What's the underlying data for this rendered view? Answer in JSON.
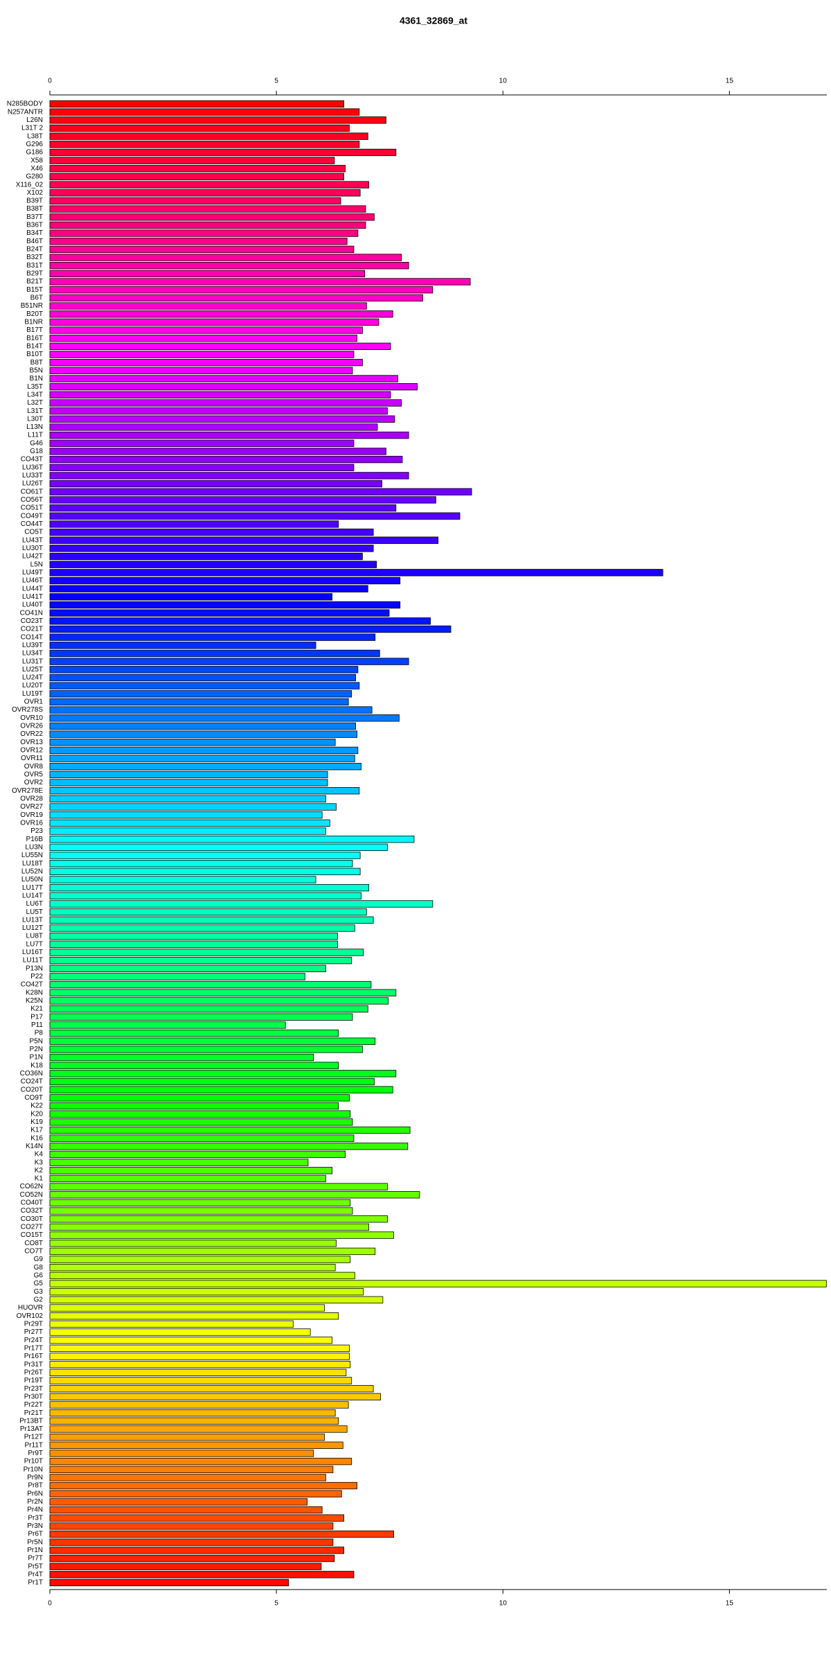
{
  "chart_data": {
    "type": "hbar",
    "title": "4361_32869_at",
    "palette": "rainbow",
    "bar_outline": "#000000",
    "xlim": [
      0,
      17.15
    ],
    "xticks": [
      0,
      5,
      10,
      15
    ],
    "categories": [
      "N285BODY",
      "N257ANTR",
      "L26N",
      "L31T 2",
      "L38T",
      "G296",
      "G186",
      "X58",
      "X46",
      "G280",
      "X116_02",
      "X102",
      "B39T",
      "B38T",
      "B37T",
      "B36T",
      "B34T",
      "B46T",
      "B24T",
      "B32T",
      "B31T",
      "B29T",
      "B21T",
      "B15T",
      "B6T",
      "B51NR",
      "B20T",
      "B1NR",
      "B17T",
      "B16T",
      "B14T",
      "B10T",
      "B8T",
      "B5N",
      "B1N",
      "L35T",
      "L34T",
      "L32T",
      "L31T",
      "L30T",
      "L13N",
      "L11T",
      "G46",
      "G18",
      "CO43T",
      "LU36T",
      "LU33T",
      "LU26T",
      "CO61T",
      "CO56T",
      "CO51T",
      "CO49T",
      "CO44T",
      "CO5T",
      "LU43T",
      "LU30T",
      "LU42T",
      "L5N",
      "LU49T",
      "LU46T",
      "LU44T",
      "LU41T",
      "LU40T",
      "CO41N",
      "CO23T",
      "CO21T",
      "CO14T",
      "LU39T",
      "LU34T",
      "LU31T",
      "LU25T",
      "LU24T",
      "LU20T",
      "LU19T",
      "OVR1",
      "OVR278S",
      "OVR10",
      "OVR26",
      "OVR22",
      "OVR13",
      "OVR12",
      "OVR11",
      "OVR8",
      "OVR5",
      "OVR2",
      "OVR278E",
      "OVR28",
      "OVR27",
      "OVR19",
      "OVR16",
      "P23",
      "P16B",
      "LU3N",
      "LU55N",
      "LU18T",
      "LU52N",
      "LU50N",
      "LU17T",
      "LU14T",
      "LU6T",
      "LU5T",
      "LU13T",
      "LU12T",
      "LU8T",
      "LU7T",
      "LU16T",
      "LU11T",
      "P13N",
      "P22",
      "CO42T",
      "K28N",
      "K25N",
      "K21",
      "P17",
      "P11",
      "P8",
      "P5N",
      "P2N",
      "P1N",
      "K18",
      "CO36N",
      "CO24T",
      "CO20T",
      "CO9T",
      "K22",
      "K20",
      "K19",
      "K17",
      "K16",
      "K14N",
      "K4",
      "K3",
      "K2",
      "K1",
      "CO62N",
      "CO52N",
      "CO40T",
      "CO32T",
      "CO30T",
      "CO27T",
      "CO15T",
      "CO8T",
      "CO7T",
      "G9",
      "G8",
      "G6",
      "G5",
      "G3",
      "G2",
      "HUOVR",
      "OVR102",
      "Pr29T",
      "Pr27T",
      "Pr24T",
      "Pr17T",
      "Pr16T",
      "Pr31T",
      "Pr26T",
      "Pr19T",
      "Pr23T",
      "Pr30T",
      "Pr22T",
      "Pr21T",
      "Pr13BT",
      "Pr13AT",
      "Pr12T",
      "Pr11T",
      "Pr9T",
      "Pr10T",
      "Pr10N",
      "Pr9N",
      "Pr8T",
      "Pr6N",
      "Pr2N",
      "Pr4N",
      "Pr3T",
      "Pr3N",
      "Pr6T",
      "Pr5N",
      "Pr1N",
      "Pr7T",
      "Pr5T",
      "Pr4T",
      "Pr1T"
    ],
    "values": [
      6.49,
      6.83,
      7.42,
      6.61,
      7.02,
      6.83,
      7.64,
      6.28,
      6.52,
      6.49,
      7.04,
      6.85,
      6.42,
      6.97,
      7.16,
      6.97,
      6.8,
      6.56,
      6.71,
      7.76,
      7.92,
      6.95,
      9.28,
      8.45,
      8.23,
      6.99,
      7.57,
      7.26,
      6.9,
      6.78,
      7.52,
      6.71,
      6.9,
      6.68,
      7.68,
      8.11,
      7.52,
      7.76,
      7.45,
      7.61,
      7.23,
      7.92,
      6.71,
      7.42,
      7.78,
      6.71,
      7.92,
      7.33,
      9.31,
      8.52,
      7.64,
      9.05,
      6.37,
      7.14,
      8.57,
      7.14,
      6.9,
      7.21,
      13.53,
      7.73,
      7.02,
      6.23,
      7.73,
      7.49,
      8.4,
      8.85,
      7.18,
      5.87,
      7.28,
      7.92,
      6.8,
      6.75,
      6.83,
      6.66,
      6.59,
      7.11,
      7.71,
      6.75,
      6.78,
      6.3,
      6.8,
      6.73,
      6.87,
      6.13,
      6.13,
      6.83,
      6.09,
      6.32,
      6.01,
      6.18,
      6.09,
      8.04,
      7.45,
      6.85,
      6.68,
      6.85,
      5.87,
      7.04,
      6.87,
      8.45,
      6.99,
      7.14,
      6.73,
      6.35,
      6.35,
      6.92,
      6.66,
      6.09,
      5.63,
      7.09,
      7.64,
      7.47,
      7.02,
      6.68,
      5.2,
      6.37,
      7.18,
      6.9,
      5.82,
      6.37,
      7.64,
      7.16,
      7.57,
      6.61,
      6.37,
      6.63,
      6.68,
      7.95,
      6.71,
      7.9,
      6.52,
      5.7,
      6.23,
      6.09,
      7.45,
      8.16,
      6.63,
      6.68,
      7.45,
      7.04,
      7.59,
      6.32,
      7.18,
      6.63,
      6.3,
      6.73,
      17.14,
      6.92,
      7.35,
      6.06,
      6.37,
      5.37,
      5.75,
      6.23,
      6.61,
      6.61,
      6.63,
      6.54,
      6.66,
      7.14,
      7.3,
      6.59,
      6.3,
      6.37,
      6.56,
      6.06,
      6.47,
      5.82,
      6.66,
      6.25,
      6.09,
      6.78,
      6.44,
      5.68,
      6.01,
      6.49,
      6.25,
      7.59,
      6.25,
      6.49,
      6.28,
      5.99,
      6.71,
      5.27
    ]
  }
}
